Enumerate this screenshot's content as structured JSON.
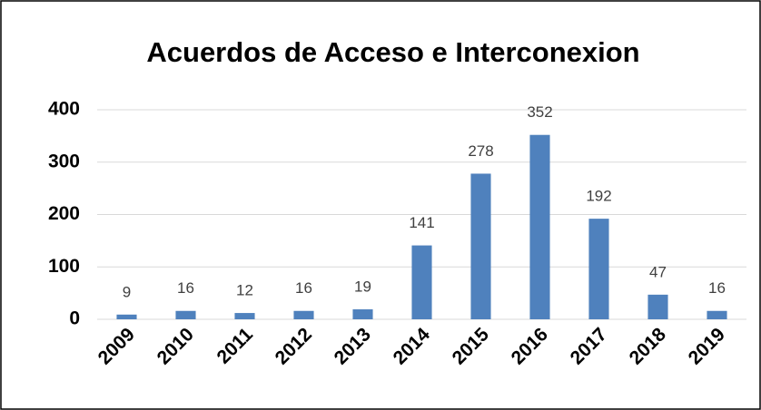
{
  "chart_data": {
    "type": "bar",
    "title": "Acuerdos de Acceso e Interconexion",
    "categories": [
      "2009",
      "2010",
      "2011",
      "2012",
      "2013",
      "2014",
      "2015",
      "2016",
      "2017",
      "2018",
      "2019"
    ],
    "values": [
      9,
      16,
      12,
      16,
      19,
      141,
      278,
      352,
      192,
      47,
      16
    ],
    "color": "#4f81bd",
    "ylim": [
      0,
      400
    ],
    "yticks": [
      0,
      100,
      200,
      300,
      400
    ],
    "grid": true,
    "data_labels": true
  }
}
